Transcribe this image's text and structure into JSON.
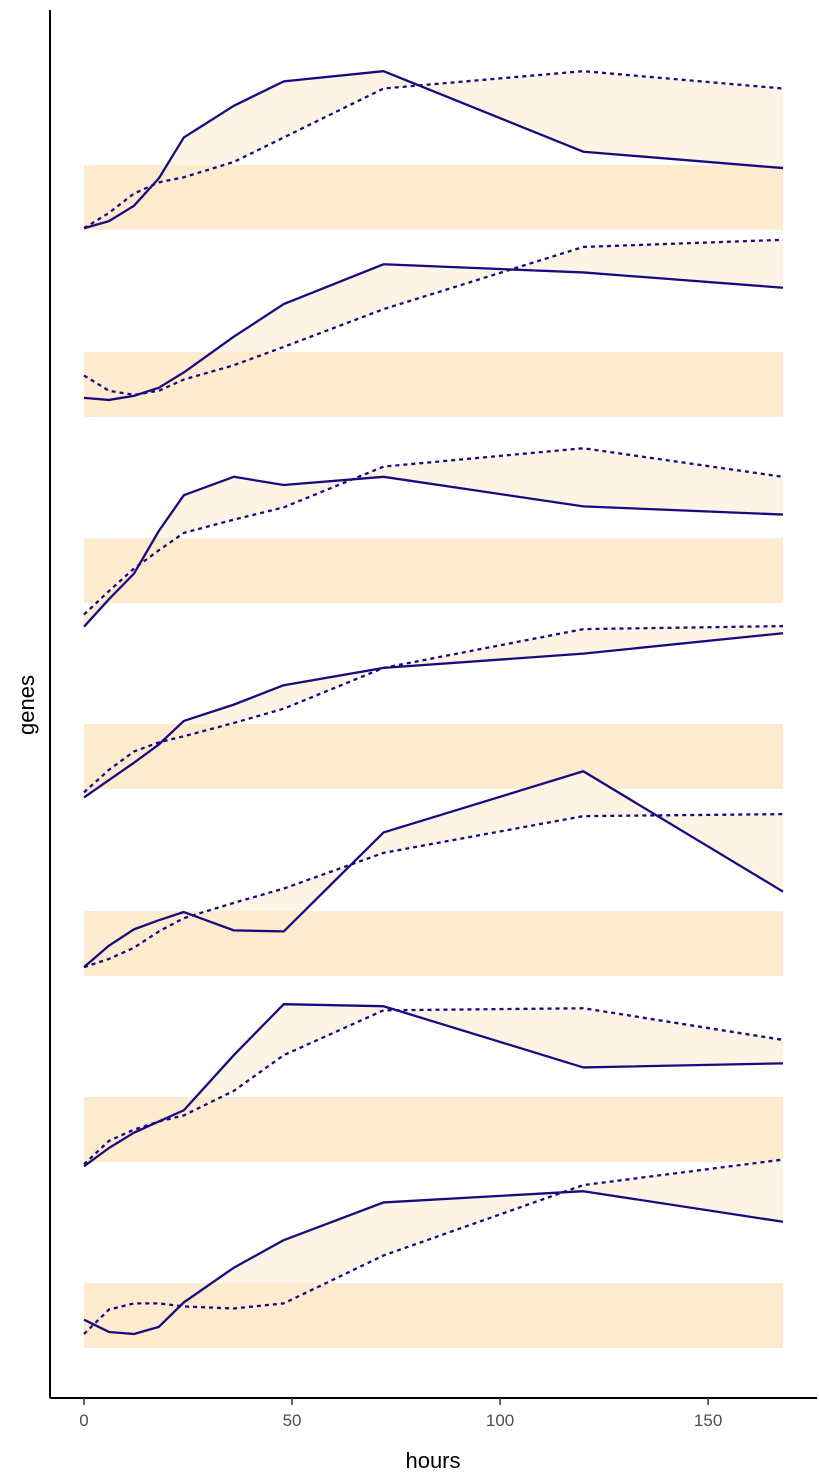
{
  "chart_data": {
    "type": "line",
    "title": "",
    "xlabel": "hours",
    "ylabel": "genes",
    "xlim": [
      -8,
      176
    ],
    "x_ticks": [
      0,
      50,
      100,
      150
    ],
    "x_tick_labels": [
      "0",
      "50",
      "100",
      "150"
    ],
    "grid": false,
    "legend": "none",
    "colors": {
      "line": "#1a0a80",
      "band_dark": "#fdebcf",
      "band_light": "#fef4e6"
    },
    "line_styles": {
      "solid": "solid",
      "dotted": "dotted"
    },
    "panels": [
      {
        "baseline": 0,
        "band_end": 168,
        "solid": [
          [
            0,
            -0.62
          ],
          [
            6,
            -0.55
          ],
          [
            12,
            -0.4
          ],
          [
            18,
            -0.13
          ],
          [
            24,
            0.27
          ],
          [
            36,
            0.58
          ],
          [
            48,
            0.82
          ],
          [
            72,
            0.92
          ],
          [
            120,
            0.13
          ],
          [
            168,
            -0.03
          ]
        ],
        "dotted": [
          [
            0,
            -0.62
          ],
          [
            6,
            -0.47
          ],
          [
            12,
            -0.28
          ],
          [
            18,
            -0.17
          ],
          [
            24,
            -0.12
          ],
          [
            36,
            0.03
          ],
          [
            48,
            0.27
          ],
          [
            72,
            0.75
          ],
          [
            120,
            0.92
          ],
          [
            168,
            0.75
          ]
        ]
      },
      {
        "baseline": 0,
        "band_end": 168,
        "solid": [
          [
            0,
            -0.45
          ],
          [
            6,
            -0.47
          ],
          [
            12,
            -0.43
          ],
          [
            18,
            -0.35
          ],
          [
            24,
            -0.2
          ],
          [
            36,
            0.15
          ],
          [
            48,
            0.47
          ],
          [
            72,
            0.86
          ],
          [
            120,
            0.78
          ],
          [
            168,
            0.63
          ]
        ],
        "dotted": [
          [
            0,
            -0.23
          ],
          [
            6,
            -0.38
          ],
          [
            12,
            -0.42
          ],
          [
            18,
            -0.38
          ],
          [
            24,
            -0.27
          ],
          [
            36,
            -0.13
          ],
          [
            48,
            0.05
          ],
          [
            72,
            0.42
          ],
          [
            120,
            1.03
          ],
          [
            168,
            1.1
          ]
        ]
      },
      {
        "baseline": 0,
        "band_end": 168,
        "solid": [
          [
            0,
            -0.87
          ],
          [
            6,
            -0.6
          ],
          [
            12,
            -0.35
          ],
          [
            18,
            0.07
          ],
          [
            24,
            0.42
          ],
          [
            36,
            0.6
          ],
          [
            48,
            0.52
          ],
          [
            72,
            0.6
          ],
          [
            120,
            0.31
          ],
          [
            168,
            0.23
          ]
        ],
        "dotted": [
          [
            0,
            -0.75
          ],
          [
            6,
            -0.52
          ],
          [
            12,
            -0.3
          ],
          [
            18,
            -0.12
          ],
          [
            24,
            0.05
          ],
          [
            36,
            0.18
          ],
          [
            48,
            0.3
          ],
          [
            72,
            0.7
          ],
          [
            120,
            0.88
          ],
          [
            168,
            0.6
          ]
        ]
      },
      {
        "baseline": 0,
        "band_end": 168,
        "solid": [
          [
            0,
            -0.72
          ],
          [
            6,
            -0.55
          ],
          [
            12,
            -0.38
          ],
          [
            18,
            -0.2
          ],
          [
            24,
            0.03
          ],
          [
            36,
            0.19
          ],
          [
            48,
            0.38
          ],
          [
            72,
            0.55
          ],
          [
            120,
            0.69
          ],
          [
            168,
            0.89
          ]
        ],
        "dotted": [
          [
            0,
            -0.67
          ],
          [
            6,
            -0.45
          ],
          [
            12,
            -0.27
          ],
          [
            18,
            -0.18
          ],
          [
            24,
            -0.12
          ],
          [
            36,
            0.01
          ],
          [
            48,
            0.15
          ],
          [
            72,
            0.55
          ],
          [
            120,
            0.93
          ],
          [
            168,
            0.96
          ]
        ]
      },
      {
        "baseline": 0,
        "band_end": 168,
        "solid": [
          [
            0,
            -0.55
          ],
          [
            6,
            -0.34
          ],
          [
            12,
            -0.18
          ],
          [
            18,
            -0.09
          ],
          [
            24,
            -0.01
          ],
          [
            36,
            -0.19
          ],
          [
            48,
            -0.2
          ],
          [
            72,
            0.77
          ],
          [
            120,
            1.37
          ],
          [
            168,
            0.19
          ]
        ],
        "dotted": [
          [
            0,
            -0.55
          ],
          [
            6,
            -0.47
          ],
          [
            12,
            -0.36
          ],
          [
            18,
            -0.2
          ],
          [
            24,
            -0.07
          ],
          [
            36,
            0.08
          ],
          [
            48,
            0.22
          ],
          [
            72,
            0.57
          ],
          [
            120,
            0.93
          ],
          [
            168,
            0.95
          ]
        ]
      },
      {
        "baseline": 0,
        "band_end": 168,
        "solid": [
          [
            0,
            -0.68
          ],
          [
            6,
            -0.5
          ],
          [
            12,
            -0.35
          ],
          [
            18,
            -0.24
          ],
          [
            24,
            -0.13
          ],
          [
            36,
            0.41
          ],
          [
            48,
            0.91
          ],
          [
            72,
            0.89
          ],
          [
            120,
            0.29
          ],
          [
            168,
            0.33
          ]
        ],
        "dotted": [
          [
            0,
            -0.66
          ],
          [
            6,
            -0.43
          ],
          [
            12,
            -0.32
          ],
          [
            18,
            -0.24
          ],
          [
            24,
            -0.18
          ],
          [
            36,
            0.06
          ],
          [
            48,
            0.41
          ],
          [
            72,
            0.85
          ],
          [
            120,
            0.87
          ],
          [
            168,
            0.56
          ]
        ]
      },
      {
        "baseline": 0,
        "band_end": 168,
        "solid": [
          [
            0,
            -0.36
          ],
          [
            6,
            -0.48
          ],
          [
            12,
            -0.5
          ],
          [
            18,
            -0.43
          ],
          [
            24,
            -0.19
          ],
          [
            36,
            0.15
          ],
          [
            48,
            0.42
          ],
          [
            72,
            0.79
          ],
          [
            120,
            0.9
          ],
          [
            168,
            0.6
          ]
        ],
        "dotted": [
          [
            0,
            -0.5
          ],
          [
            6,
            -0.26
          ],
          [
            12,
            -0.2
          ],
          [
            18,
            -0.2
          ],
          [
            24,
            -0.23
          ],
          [
            36,
            -0.25
          ],
          [
            48,
            -0.2
          ],
          [
            72,
            0.27
          ],
          [
            120,
            0.96
          ],
          [
            168,
            1.21
          ]
        ]
      }
    ]
  }
}
